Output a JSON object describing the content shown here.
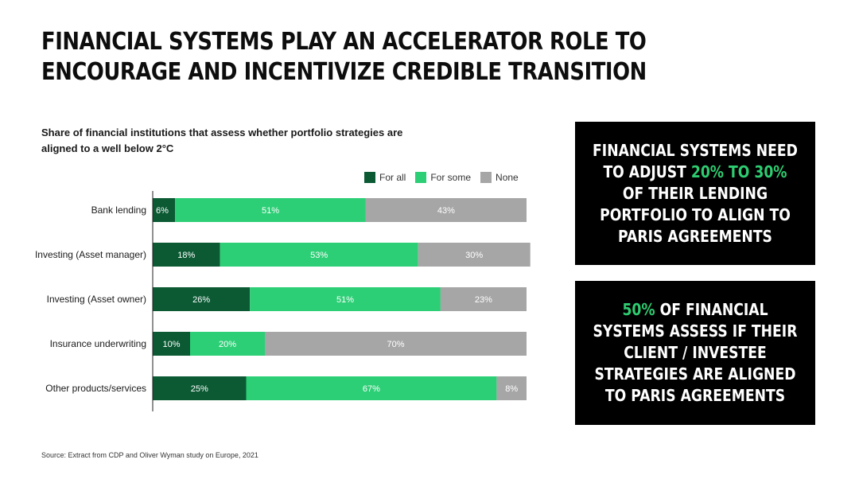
{
  "title": "FINANCIAL SYSTEMS PLAY AN ACCELERATOR ROLE TO ENCOURAGE AND INCENTIVIZE CREDIBLE TRANSITION",
  "colors": {
    "for_all": "#0b5a34",
    "for_some": "#2dcf76",
    "none": "#a6a6a6",
    "callout_bg": "#000000",
    "highlight": "#2ecc71"
  },
  "chart_data": {
    "type": "bar",
    "orientation": "horizontal-stacked",
    "title": "Share of financial institutions that assess whether portfolio strategies are aligned to a well below 2°C",
    "legend": "top-right",
    "categories": [
      "Bank lending",
      "Investing (Asset manager)",
      "Investing (Asset owner)",
      "Insurance underwriting",
      "Other products/services"
    ],
    "series": [
      {
        "name": "For all",
        "values": [
          6,
          18,
          26,
          10,
          25
        ]
      },
      {
        "name": "For some",
        "values": [
          51,
          53,
          51,
          20,
          67
        ]
      },
      {
        "name": "None",
        "values": [
          43,
          30,
          23,
          70,
          8
        ]
      }
    ],
    "unit": "%"
  },
  "callouts": [
    {
      "pre": "FINANCIAL SYSTEMS NEED TO ADJUST ",
      "highlight": "20% TO 30%",
      "post": " OF THEIR LENDING PORTFOLIO TO ALIGN TO PARIS AGREEMENTS"
    },
    {
      "pre": "",
      "highlight": "50%",
      "post": " OF FINANCIAL SYSTEMS ASSESS IF THEIR CLIENT / INVESTEE STRATEGIES ARE ALIGNED TO PARIS AGREEMENTS"
    }
  ],
  "source": "Source: Extract from CDP and Oliver Wyman study on Europe, 2021"
}
